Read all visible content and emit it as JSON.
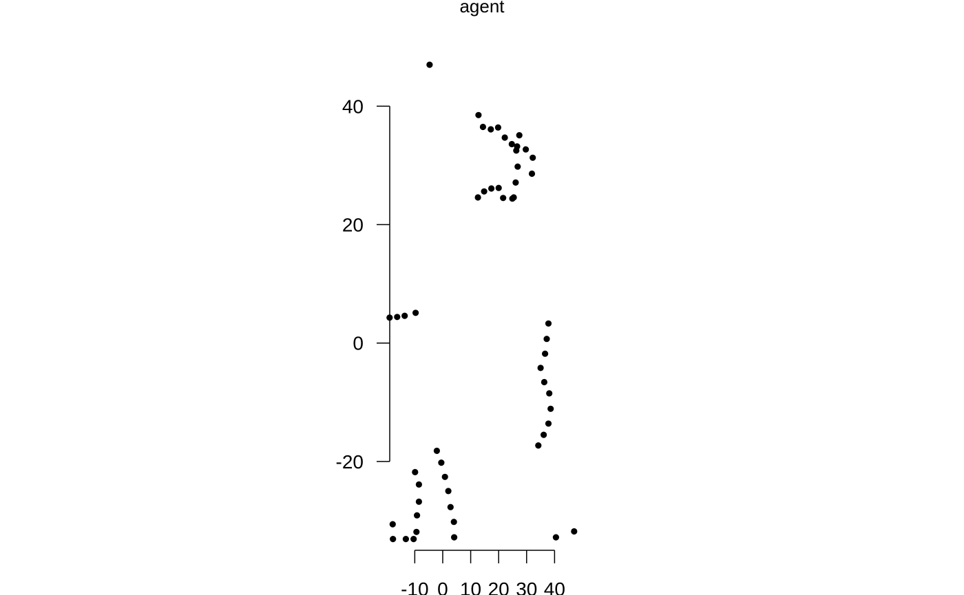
{
  "chart_data": {
    "type": "scatter",
    "title": "agent",
    "xlabel": "",
    "ylabel": "",
    "x_ticks": [
      -10,
      0,
      10,
      20,
      30,
      40
    ],
    "y_ticks": [
      40,
      20,
      0,
      -20
    ],
    "xlim": [
      -19.2,
      46.8
    ],
    "ylim": [
      -35,
      50.5
    ],
    "grid": false,
    "legend": "none",
    "point_color": "#000000",
    "series": [
      {
        "x": [
          -4.7,
          12.8,
          14.4,
          17.2,
          19.8,
          22.2,
          24.7,
          27.4,
          26.3,
          29.7,
          26.6,
          32.2,
          26.8,
          31.9,
          26.1,
          25.4,
          21.6,
          20.0,
          17.4,
          14.8,
          12.6,
          24.9,
          -19.0,
          -16.3,
          -13.6,
          -9.7,
          37.8,
          37.2,
          36.6,
          35.0,
          36.3,
          38.1,
          38.6,
          37.8,
          36.1,
          34.2,
          -9.9,
          -8.5,
          -8.5,
          -9.2,
          -9.4,
          -10.4,
          -17.9,
          -17.8,
          -13.2,
          -2.1,
          -0.5,
          0.8,
          2.0,
          2.8,
          4.0,
          4.1,
          40.5,
          47.0
        ],
        "y": [
          47.0,
          38.5,
          36.5,
          36.1,
          36.4,
          34.7,
          33.6,
          35.1,
          32.5,
          32.7,
          33.2,
          31.3,
          29.8,
          28.6,
          27.1,
          24.6,
          24.5,
          26.2,
          26.1,
          25.6,
          24.6,
          24.4,
          4.3,
          4.4,
          4.6,
          5.1,
          3.3,
          0.7,
          -1.8,
          -4.2,
          -6.6,
          -8.5,
          -11.1,
          -13.6,
          -15.5,
          -17.3,
          -21.8,
          -23.9,
          -26.8,
          -29.1,
          -31.9,
          -33.1,
          -30.6,
          -33.1,
          -33.1,
          -18.2,
          -20.2,
          -22.6,
          -25.0,
          -27.7,
          -30.2,
          -32.8,
          -32.8,
          -31.8
        ]
      }
    ]
  }
}
